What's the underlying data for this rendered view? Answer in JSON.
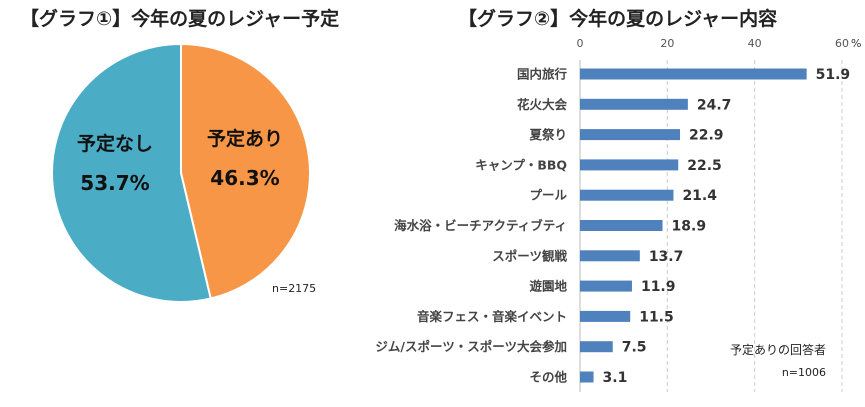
{
  "chart_data": [
    {
      "type": "pie",
      "title": "【グラフ①】今年の夏のレジャー予定",
      "slices": [
        {
          "label": "予定あり",
          "value": 46.3,
          "value_label": "46.3%",
          "color": "#F79646"
        },
        {
          "label": "予定なし",
          "value": 53.7,
          "value_label": "53.7%",
          "color": "#4BACC6"
        }
      ],
      "note": "n=2175"
    },
    {
      "type": "bar",
      "orientation": "horizontal",
      "title": "【グラフ②】今年の夏のレジャー内容",
      "categories": [
        "国内旅行",
        "花火大会",
        "夏祭り",
        "キャンプ・BBQ",
        "プール",
        "海水浴・ビーチアクティブティ",
        "スポーツ観戦",
        "遊園地",
        "音楽フェス・音楽イベント",
        "ジム/スポーツ・スポーツ大会参加",
        "その他"
      ],
      "values": [
        51.9,
        24.7,
        22.9,
        22.5,
        21.4,
        18.9,
        13.7,
        11.9,
        11.5,
        7.5,
        3.1
      ],
      "value_labels": [
        "51.9",
        "24.7",
        "22.9",
        "22.5",
        "21.4",
        "18.9",
        "13.7",
        "11.9",
        "11.5",
        "7.5",
        "3.1"
      ],
      "xlim": [
        0,
        60
      ],
      "xticks": [
        "0",
        "20",
        "40",
        "60"
      ],
      "xunit": "%",
      "grid": true,
      "color": "#4F81BD",
      "note_lines": [
        "予定ありの回答者",
        "n=1006"
      ]
    }
  ]
}
